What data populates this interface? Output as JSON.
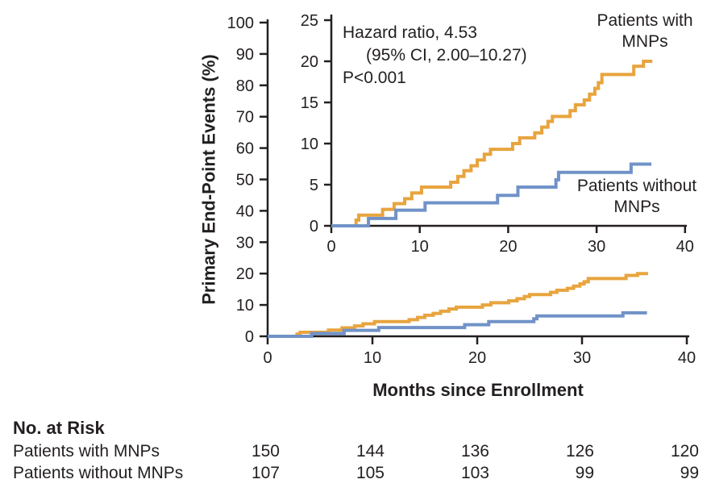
{
  "figure": {
    "background": "#ffffff",
    "text_color": "#231f20",
    "accent_orange": "#E8A43E",
    "accent_blue": "#7092C8"
  },
  "chart_data": [
    {
      "id": "main-plot",
      "type": "line",
      "subtype": "kaplan-meier-step",
      "title": "",
      "xlabel": "Months since Enrollment",
      "ylabel": "Primary End-Point Events (%)",
      "xlim": [
        0,
        40
      ],
      "ylim": [
        0,
        100
      ],
      "xticks": [
        0,
        10,
        20,
        30,
        40
      ],
      "yticks": [
        0,
        10,
        20,
        30,
        40,
        50,
        60,
        70,
        80,
        90,
        100
      ],
      "grid": false,
      "legend_position": "none",
      "series": [
        {
          "name": "Patients with MNPs",
          "color": "#E8A43E",
          "points": [
            [
              0,
              0
            ],
            [
              2.8,
              0.7
            ],
            [
              3.1,
              1.3
            ],
            [
              5.8,
              2.0
            ],
            [
              7.1,
              2.7
            ],
            [
              8.3,
              3.3
            ],
            [
              9.1,
              4.0
            ],
            [
              10.2,
              4.7
            ],
            [
              13.5,
              5.3
            ],
            [
              14.3,
              6.0
            ],
            [
              15.0,
              6.7
            ],
            [
              15.8,
              7.3
            ],
            [
              16.5,
              8.0
            ],
            [
              17.3,
              8.7
            ],
            [
              18.0,
              9.3
            ],
            [
              20.5,
              10.0
            ],
            [
              21.3,
              10.7
            ],
            [
              23.0,
              11.3
            ],
            [
              23.8,
              12.0
            ],
            [
              24.5,
              12.7
            ],
            [
              25.0,
              13.3
            ],
            [
              27.0,
              14.0
            ],
            [
              27.6,
              14.7
            ],
            [
              28.6,
              15.3
            ],
            [
              29.2,
              16.0
            ],
            [
              29.8,
              16.7
            ],
            [
              30.2,
              17.4
            ],
            [
              30.6,
              18.4
            ],
            [
              34.2,
              19.4
            ],
            [
              35.3,
              20.0
            ],
            [
              36.3,
              20.0
            ]
          ]
        },
        {
          "name": "Patients without MNPs",
          "color": "#7092C8",
          "points": [
            [
              0,
              0
            ],
            [
              4.2,
              0.9
            ],
            [
              7.3,
              1.9
            ],
            [
              10.6,
              2.8
            ],
            [
              18.8,
              3.7
            ],
            [
              21.1,
              4.7
            ],
            [
              25.4,
              5.6
            ],
            [
              25.7,
              6.5
            ],
            [
              33.9,
              7.5
            ],
            [
              36.2,
              7.5
            ]
          ]
        }
      ]
    },
    {
      "id": "inset-plot",
      "type": "line",
      "subtype": "kaplan-meier-step",
      "title": "",
      "xlabel": "",
      "ylabel": "",
      "xlim": [
        0,
        40
      ],
      "ylim": [
        0,
        25
      ],
      "xticks": [
        0,
        10,
        20,
        30,
        40
      ],
      "yticks": [
        0,
        5,
        10,
        15,
        20,
        25
      ],
      "grid": false,
      "annotation": {
        "lines": [
          "Hazard ratio, 4.53",
          "(95% CI, 2.00–10.27)",
          "P<0.001"
        ]
      },
      "series_labels": [
        {
          "lines": [
            "Patients with",
            "MNPs"
          ]
        },
        {
          "lines": [
            "Patients without",
            "MNPs"
          ]
        }
      ],
      "series": [
        {
          "name": "Patients with MNPs",
          "color": "#E8A43E",
          "points": [
            [
              0,
              0
            ],
            [
              2.8,
              0.7
            ],
            [
              3.1,
              1.3
            ],
            [
              5.8,
              2.0
            ],
            [
              7.1,
              2.7
            ],
            [
              8.3,
              3.3
            ],
            [
              9.1,
              4.0
            ],
            [
              10.2,
              4.7
            ],
            [
              13.5,
              5.3
            ],
            [
              14.3,
              6.0
            ],
            [
              15.0,
              6.7
            ],
            [
              15.8,
              7.3
            ],
            [
              16.5,
              8.0
            ],
            [
              17.3,
              8.7
            ],
            [
              18.0,
              9.3
            ],
            [
              20.5,
              10.0
            ],
            [
              21.3,
              10.7
            ],
            [
              23.0,
              11.3
            ],
            [
              23.8,
              12.0
            ],
            [
              24.5,
              12.7
            ],
            [
              25.0,
              13.3
            ],
            [
              27.0,
              14.0
            ],
            [
              27.6,
              14.7
            ],
            [
              28.6,
              15.3
            ],
            [
              29.2,
              16.0
            ],
            [
              29.8,
              16.7
            ],
            [
              30.2,
              17.4
            ],
            [
              30.6,
              18.4
            ],
            [
              34.2,
              19.4
            ],
            [
              35.3,
              20.0
            ],
            [
              36.3,
              20.0
            ]
          ]
        },
        {
          "name": "Patients without MNPs",
          "color": "#7092C8",
          "points": [
            [
              0,
              0
            ],
            [
              4.2,
              0.9
            ],
            [
              7.3,
              1.9
            ],
            [
              10.6,
              2.8
            ],
            [
              18.8,
              3.7
            ],
            [
              21.1,
              4.7
            ],
            [
              25.4,
              5.6
            ],
            [
              25.7,
              6.5
            ],
            [
              33.9,
              7.5
            ],
            [
              36.2,
              7.5
            ]
          ]
        }
      ]
    }
  ],
  "risk_table": {
    "title": "No. at Risk",
    "rows": [
      {
        "label": "Patients with MNPs",
        "values": [
          "150",
          "144",
          "136",
          "126",
          "120"
        ]
      },
      {
        "label": "Patients without MNPs",
        "values": [
          "107",
          "105",
          "103",
          "99",
          "99"
        ]
      }
    ]
  }
}
